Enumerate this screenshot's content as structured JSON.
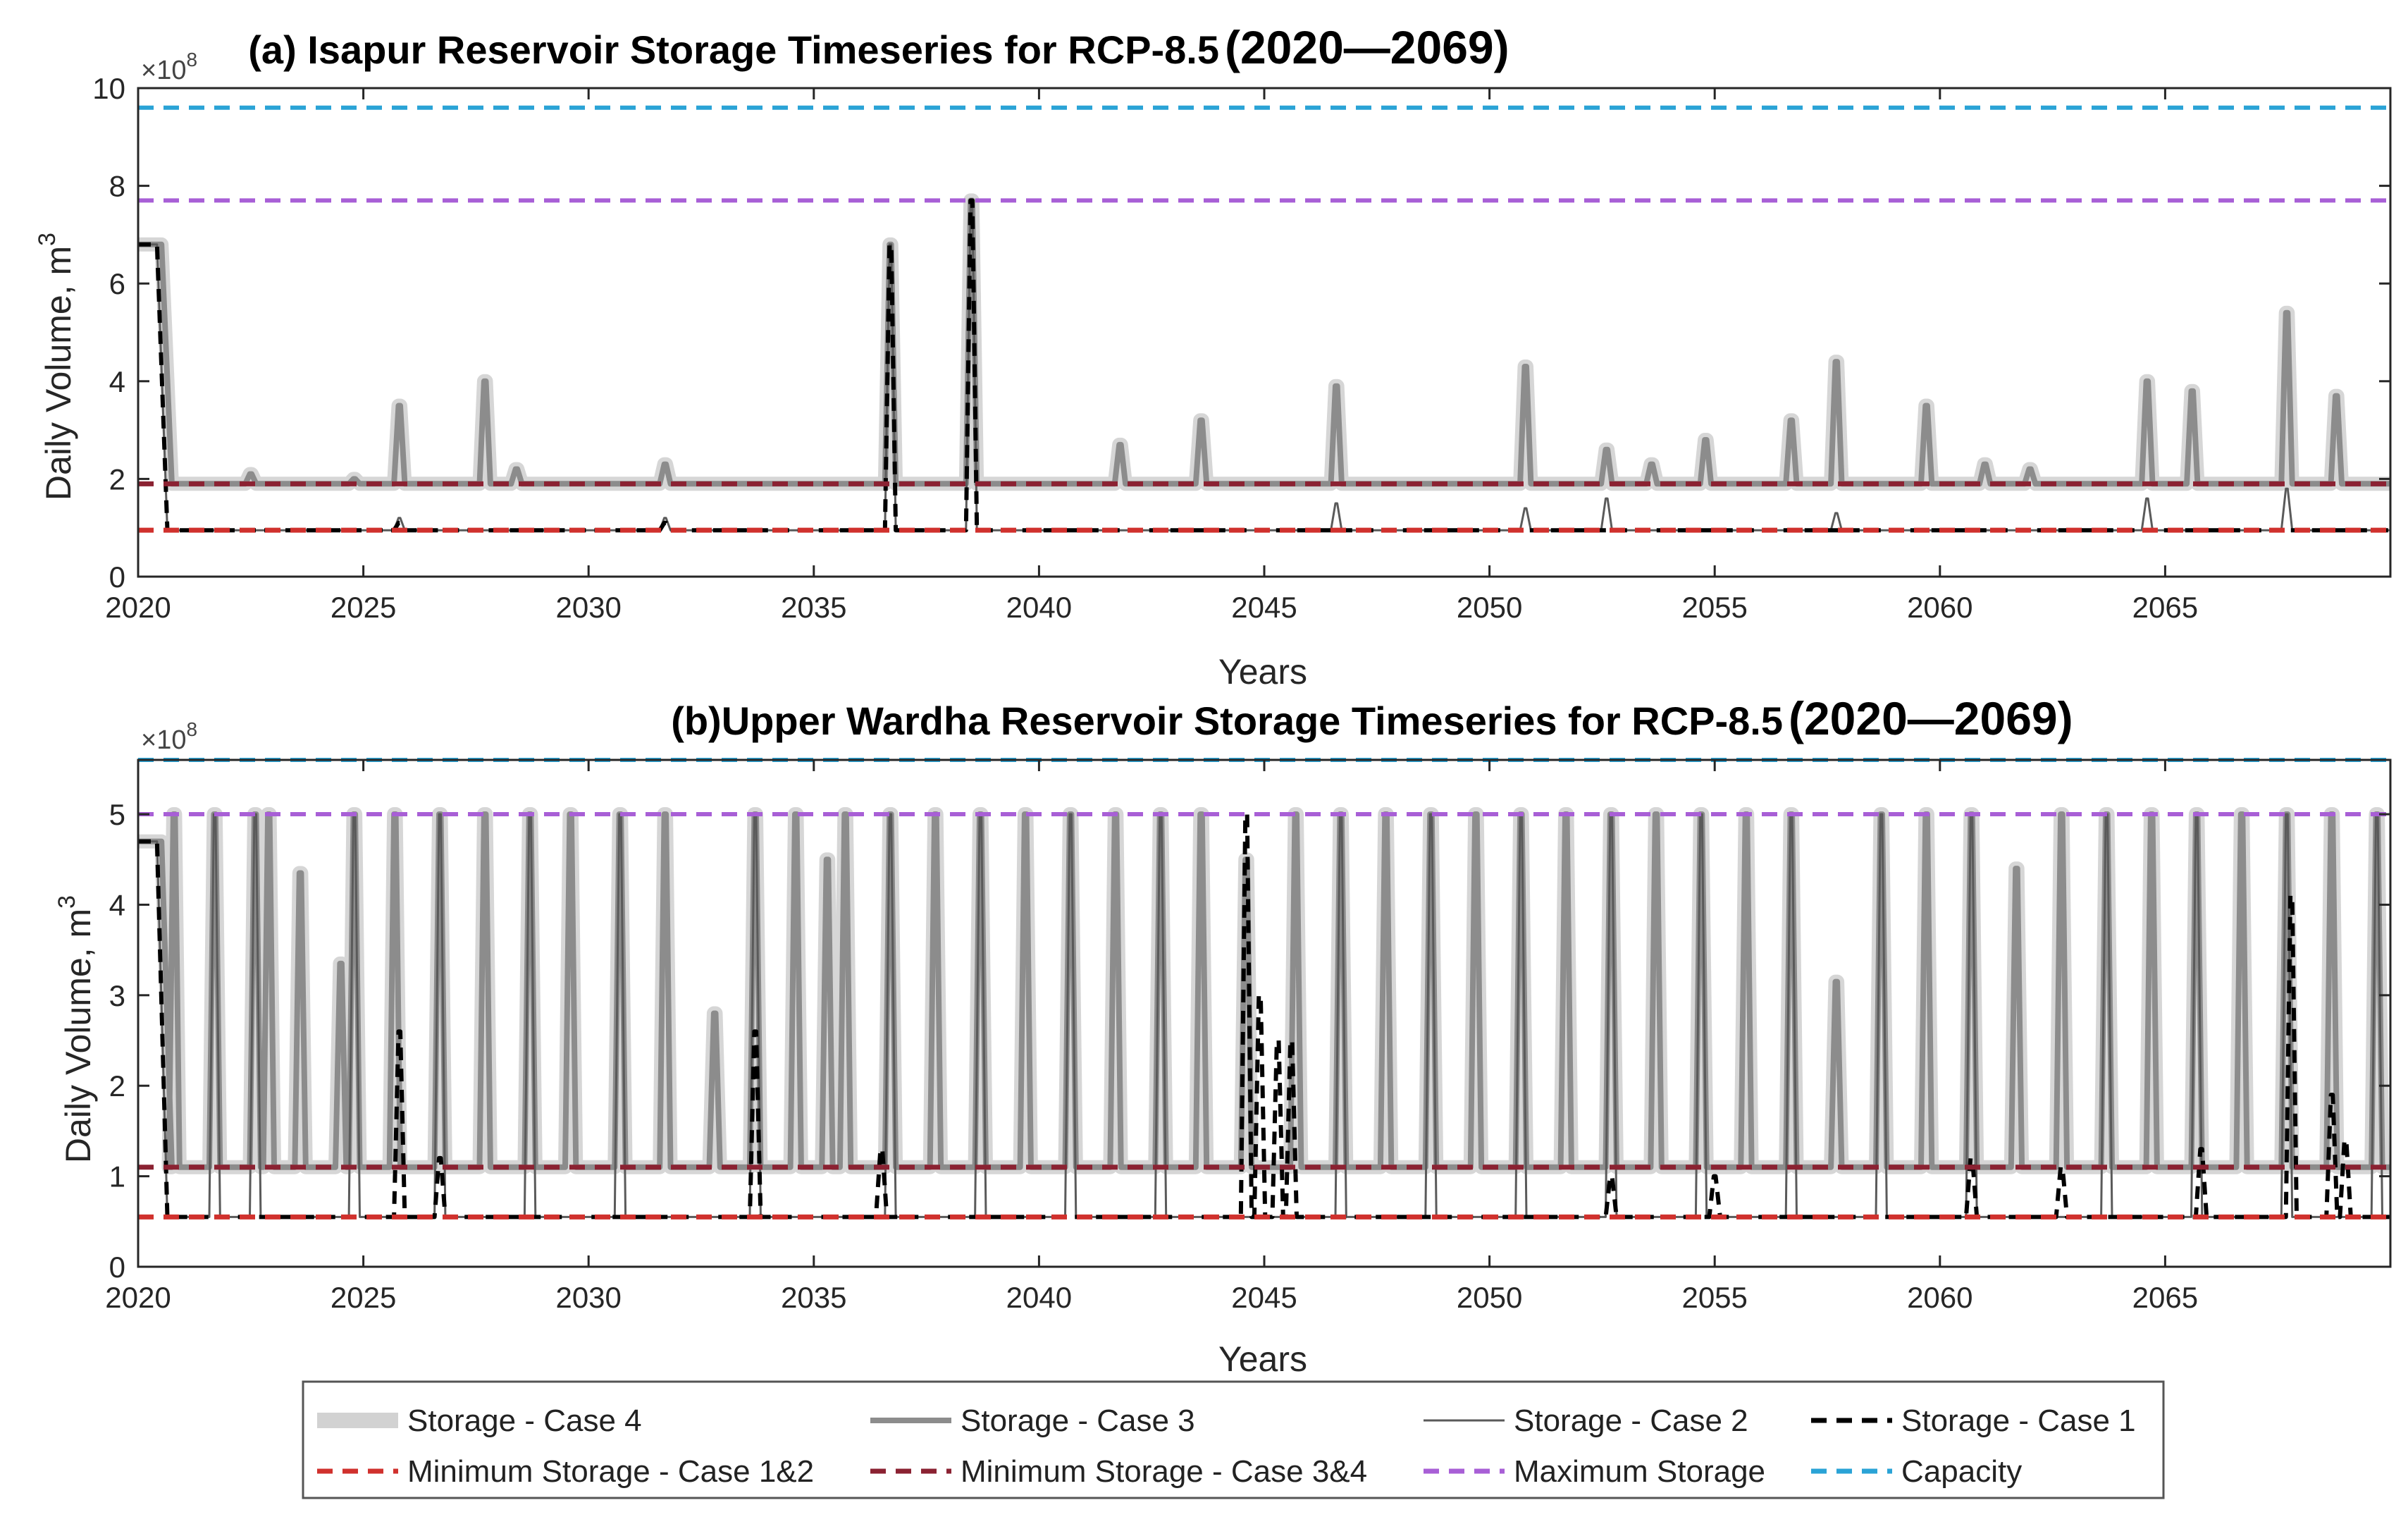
{
  "colors": {
    "case4": "#d2d2d2",
    "case3": "#8c8c8c",
    "case2": "#5a5a5a",
    "case1": "#000000",
    "min12": "#d0312d",
    "min34": "#8b2232",
    "max": "#a85fd6",
    "capacity": "#2aa3d6",
    "axis": "#262626"
  },
  "legend": {
    "items": [
      {
        "key": "case4",
        "label": "Storage - Case 4",
        "style": "thick"
      },
      {
        "key": "case3",
        "label": "Storage - Case 3",
        "style": "solid"
      },
      {
        "key": "case2",
        "label": "Storage - Case 2",
        "style": "thin"
      },
      {
        "key": "case1",
        "label": "Storage - Case 1",
        "style": "dash"
      },
      {
        "key": "min12",
        "label": "Minimum Storage - Case 1&2",
        "style": "dash"
      },
      {
        "key": "min34",
        "label": "Minimum Storage - Case 3&4",
        "style": "dash"
      },
      {
        "key": "max",
        "label": "Maximum Storage",
        "style": "dash"
      },
      {
        "key": "capacity",
        "label": "Capacity",
        "style": "dash"
      }
    ]
  },
  "chart_data": [
    {
      "type": "line",
      "title": "(a) Isapur Reservoir Storage Timeseries for RCP-8.5",
      "title_years": "(2020—2069)",
      "xlabel": "Years",
      "ylabel": "Daily Volume, m",
      "ylabel_sup": "3",
      "multiplier": "×10",
      "multiplier_sup": "8",
      "xlim": [
        2020,
        2070
      ],
      "ylim": [
        0,
        10
      ],
      "xticks": [
        2020,
        2025,
        2030,
        2035,
        2040,
        2045,
        2050,
        2055,
        2060,
        2065
      ],
      "yticks": [
        0,
        2,
        4,
        6,
        8,
        10
      ],
      "hlines": [
        {
          "key": "capacity",
          "y": 9.6
        },
        {
          "key": "max",
          "y": 7.7
        },
        {
          "key": "min34",
          "y": 1.9
        },
        {
          "key": "min12",
          "y": 0.95
        }
      ],
      "series": [
        {
          "key": "case4",
          "baseline": 1.9,
          "initial": 6.8,
          "initial_end": 2020.6,
          "peaks": [
            [
              2022.5,
              2.1
            ],
            [
              2024.8,
              2.0
            ],
            [
              2025.8,
              3.5
            ],
            [
              2027.7,
              4.0
            ],
            [
              2028.4,
              2.2
            ],
            [
              2031.7,
              2.3
            ],
            [
              2036.7,
              6.8
            ],
            [
              2038.5,
              7.7
            ],
            [
              2041.8,
              2.7
            ],
            [
              2043.6,
              3.2
            ],
            [
              2046.6,
              3.9
            ],
            [
              2050.8,
              4.3
            ],
            [
              2052.6,
              2.6
            ],
            [
              2053.6,
              2.3
            ],
            [
              2054.8,
              2.8
            ],
            [
              2056.7,
              3.2
            ],
            [
              2057.7,
              4.4
            ],
            [
              2059.7,
              3.5
            ],
            [
              2061.0,
              2.3
            ],
            [
              2062.0,
              2.2
            ],
            [
              2064.6,
              4.0
            ],
            [
              2065.6,
              3.8
            ],
            [
              2067.7,
              5.4
            ],
            [
              2068.8,
              3.7
            ]
          ]
        },
        {
          "key": "case3",
          "baseline": 1.9,
          "initial": 6.8,
          "initial_end": 2020.6,
          "peaks": [
            [
              2022.5,
              2.1
            ],
            [
              2024.8,
              2.0
            ],
            [
              2025.8,
              3.5
            ],
            [
              2027.7,
              4.0
            ],
            [
              2028.4,
              2.2
            ],
            [
              2031.7,
              2.3
            ],
            [
              2036.7,
              6.8
            ],
            [
              2038.5,
              7.7
            ],
            [
              2041.8,
              2.7
            ],
            [
              2043.6,
              3.2
            ],
            [
              2046.6,
              3.9
            ],
            [
              2050.8,
              4.3
            ],
            [
              2052.6,
              2.6
            ],
            [
              2053.6,
              2.3
            ],
            [
              2054.8,
              2.8
            ],
            [
              2056.7,
              3.2
            ],
            [
              2057.7,
              4.4
            ],
            [
              2059.7,
              3.5
            ],
            [
              2061.0,
              2.3
            ],
            [
              2062.0,
              2.2
            ],
            [
              2064.6,
              4.0
            ],
            [
              2065.6,
              3.8
            ],
            [
              2067.7,
              5.4
            ],
            [
              2068.8,
              3.7
            ]
          ]
        },
        {
          "key": "case2",
          "baseline": 0.95,
          "initial": 6.8,
          "initial_end": 2020.5,
          "peaks": [
            [
              2025.8,
              1.2
            ],
            [
              2031.7,
              1.2
            ],
            [
              2036.7,
              6.8
            ],
            [
              2038.5,
              7.7
            ],
            [
              2046.6,
              1.5
            ],
            [
              2050.8,
              1.4
            ],
            [
              2052.6,
              1.6
            ],
            [
              2057.7,
              1.3
            ],
            [
              2064.6,
              1.6
            ],
            [
              2067.7,
              1.8
            ]
          ]
        },
        {
          "key": "case1",
          "baseline": 0.95,
          "initial": 6.8,
          "initial_end": 2020.5,
          "peaks": [
            [
              2025.8,
              1.1
            ],
            [
              2031.7,
              1.1
            ],
            [
              2036.7,
              6.8
            ],
            [
              2038.5,
              7.7
            ]
          ]
        }
      ]
    },
    {
      "type": "line",
      "title": "(b)Upper Wardha Reservoir Storage Timeseries for RCP-8.5",
      "title_years": "(2020—2069)",
      "xlabel": "Years",
      "ylabel": "Daily Volume, m",
      "ylabel_sup": "3",
      "multiplier": "×10",
      "multiplier_sup": "8",
      "xlim": [
        2020,
        2070
      ],
      "ylim": [
        0,
        5.6
      ],
      "xticks": [
        2020,
        2025,
        2030,
        2035,
        2040,
        2045,
        2050,
        2055,
        2060,
        2065
      ],
      "yticks": [
        0,
        1,
        2,
        3,
        4,
        5
      ],
      "hlines": [
        {
          "key": "capacity",
          "y": 5.6
        },
        {
          "key": "max",
          "y": 5.0
        },
        {
          "key": "min34",
          "y": 1.1
        },
        {
          "key": "min12",
          "y": 0.55
        }
      ],
      "series": [
        {
          "key": "case4",
          "baseline": 1.1,
          "initial": 4.7,
          "initial_end": 2020.6,
          "peaks": [
            [
              2020.8,
              5.0
            ],
            [
              2021.7,
              5.0
            ],
            [
              2022.6,
              5.0
            ],
            [
              2022.9,
              5.0
            ],
            [
              2023.6,
              4.35
            ],
            [
              2024.5,
              3.35
            ],
            [
              2024.8,
              5.0
            ],
            [
              2025.7,
              5.0
            ],
            [
              2026.7,
              5.0
            ],
            [
              2027.7,
              5.0
            ],
            [
              2028.7,
              5.0
            ],
            [
              2029.6,
              5.0
            ],
            [
              2030.7,
              5.0
            ],
            [
              2031.7,
              5.0
            ],
            [
              2032.8,
              2.8
            ],
            [
              2033.7,
              5.0
            ],
            [
              2034.6,
              5.0
            ],
            [
              2035.3,
              4.5
            ],
            [
              2035.7,
              5.0
            ],
            [
              2036.7,
              5.0
            ],
            [
              2037.7,
              5.0
            ],
            [
              2038.7,
              5.0
            ],
            [
              2039.7,
              5.0
            ],
            [
              2040.7,
              5.0
            ],
            [
              2041.7,
              5.0
            ],
            [
              2042.7,
              5.0
            ],
            [
              2043.6,
              5.0
            ],
            [
              2044.6,
              4.5
            ],
            [
              2045.7,
              5.0
            ],
            [
              2046.7,
              5.0
            ],
            [
              2047.7,
              5.0
            ],
            [
              2048.7,
              5.0
            ],
            [
              2049.7,
              5.0
            ],
            [
              2050.7,
              5.0
            ],
            [
              2051.7,
              5.0
            ],
            [
              2052.7,
              5.0
            ],
            [
              2053.7,
              5.0
            ],
            [
              2054.7,
              5.0
            ],
            [
              2055.7,
              5.0
            ],
            [
              2056.7,
              5.0
            ],
            [
              2057.7,
              3.15
            ],
            [
              2058.7,
              5.0
            ],
            [
              2059.7,
              5.0
            ],
            [
              2060.7,
              5.0
            ],
            [
              2061.7,
              4.4
            ],
            [
              2062.7,
              5.0
            ],
            [
              2063.7,
              5.0
            ],
            [
              2064.7,
              5.0
            ],
            [
              2065.7,
              5.0
            ],
            [
              2066.7,
              5.0
            ],
            [
              2067.7,
              5.0
            ],
            [
              2068.7,
              5.0
            ],
            [
              2069.7,
              5.0
            ]
          ]
        },
        {
          "key": "case3",
          "baseline": 1.1,
          "initial": 4.7,
          "initial_end": 2020.6,
          "peaks": [
            [
              2020.8,
              5.0
            ],
            [
              2021.7,
              5.0
            ],
            [
              2022.6,
              5.0
            ],
            [
              2022.9,
              5.0
            ],
            [
              2023.6,
              4.35
            ],
            [
              2024.5,
              3.35
            ],
            [
              2024.8,
              5.0
            ],
            [
              2025.7,
              5.0
            ],
            [
              2026.7,
              5.0
            ],
            [
              2027.7,
              5.0
            ],
            [
              2028.7,
              5.0
            ],
            [
              2029.6,
              5.0
            ],
            [
              2030.7,
              5.0
            ],
            [
              2031.7,
              5.0
            ],
            [
              2032.8,
              2.8
            ],
            [
              2033.7,
              5.0
            ],
            [
              2034.6,
              5.0
            ],
            [
              2035.3,
              4.5
            ],
            [
              2035.7,
              5.0
            ],
            [
              2036.7,
              5.0
            ],
            [
              2037.7,
              5.0
            ],
            [
              2038.7,
              5.0
            ],
            [
              2039.7,
              5.0
            ],
            [
              2040.7,
              5.0
            ],
            [
              2041.7,
              5.0
            ],
            [
              2042.7,
              5.0
            ],
            [
              2043.6,
              5.0
            ],
            [
              2044.6,
              4.5
            ],
            [
              2045.7,
              5.0
            ],
            [
              2046.7,
              5.0
            ],
            [
              2047.7,
              5.0
            ],
            [
              2048.7,
              5.0
            ],
            [
              2049.7,
              5.0
            ],
            [
              2050.7,
              5.0
            ],
            [
              2051.7,
              5.0
            ],
            [
              2052.7,
              5.0
            ],
            [
              2053.7,
              5.0
            ],
            [
              2054.7,
              5.0
            ],
            [
              2055.7,
              5.0
            ],
            [
              2056.7,
              5.0
            ],
            [
              2057.7,
              3.15
            ],
            [
              2058.7,
              5.0
            ],
            [
              2059.7,
              5.0
            ],
            [
              2060.7,
              5.0
            ],
            [
              2061.7,
              4.4
            ],
            [
              2062.7,
              5.0
            ],
            [
              2063.7,
              5.0
            ],
            [
              2064.7,
              5.0
            ],
            [
              2065.7,
              5.0
            ],
            [
              2066.7,
              5.0
            ],
            [
              2067.7,
              5.0
            ],
            [
              2068.7,
              5.0
            ],
            [
              2069.7,
              5.0
            ]
          ]
        },
        {
          "key": "case2",
          "baseline": 0.55,
          "initial": 4.7,
          "initial_end": 2020.5,
          "peaks": [
            [
              2021.7,
              5.0
            ],
            [
              2022.6,
              5.0
            ],
            [
              2024.8,
              5.0
            ],
            [
              2026.7,
              5.0
            ],
            [
              2028.7,
              5.0
            ],
            [
              2030.7,
              5.0
            ],
            [
              2033.7,
              5.0
            ],
            [
              2036.7,
              5.0
            ],
            [
              2038.7,
              5.0
            ],
            [
              2040.7,
              5.0
            ],
            [
              2042.7,
              5.0
            ],
            [
              2046.7,
              5.0
            ],
            [
              2048.7,
              5.0
            ],
            [
              2050.7,
              5.0
            ],
            [
              2052.7,
              5.0
            ],
            [
              2054.7,
              5.0
            ],
            [
              2056.7,
              5.0
            ],
            [
              2058.7,
              5.0
            ],
            [
              2060.7,
              5.0
            ],
            [
              2063.7,
              5.0
            ],
            [
              2065.7,
              5.0
            ],
            [
              2067.7,
              5.0
            ],
            [
              2069.7,
              5.0
            ]
          ]
        },
        {
          "key": "case1",
          "baseline": 0.55,
          "initial": 4.7,
          "initial_end": 2020.5,
          "peaks": [
            [
              2025.8,
              2.6
            ],
            [
              2026.7,
              1.2
            ],
            [
              2033.7,
              2.6
            ],
            [
              2036.5,
              1.3
            ],
            [
              2044.6,
              5.0
            ],
            [
              2044.9,
              3.0
            ],
            [
              2045.3,
              2.5
            ],
            [
              2045.6,
              2.5
            ],
            [
              2052.7,
              1.0
            ],
            [
              2055.0,
              1.0
            ],
            [
              2060.7,
              1.2
            ],
            [
              2062.7,
              1.1
            ],
            [
              2065.8,
              1.3
            ],
            [
              2067.8,
              4.1
            ],
            [
              2068.7,
              1.9
            ],
            [
              2069.0,
              1.4
            ]
          ]
        }
      ]
    }
  ]
}
